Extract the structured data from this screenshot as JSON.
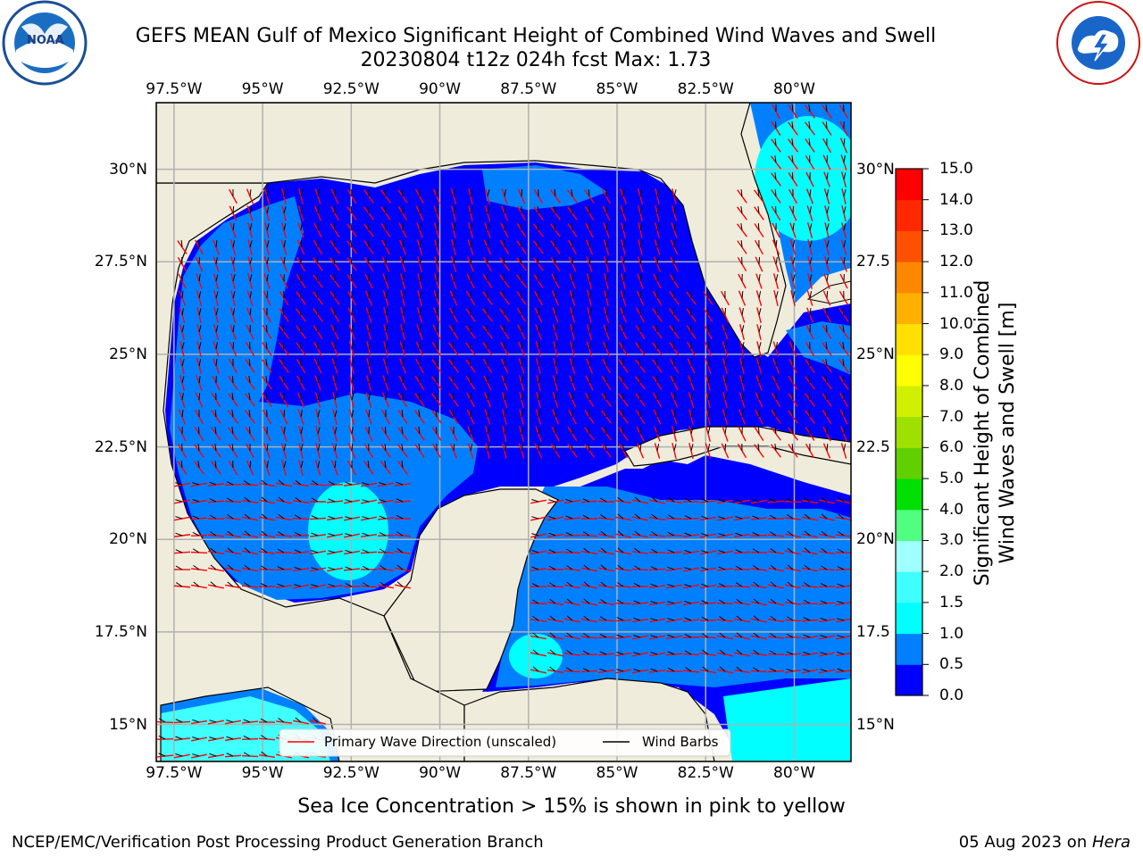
{
  "header": {
    "title_line1": "GEFS MEAN Gulf of Mexico Significant Height of Combined Wind Waves and Swell",
    "title_line2": "20230804 t12z 024h fcst   Max: 1.73"
  },
  "logos": {
    "noaa": {
      "text": "NOAA",
      "ring_text": "NATIONAL OCEANIC AND ATMOSPHERIC ADMINISTRATION · U.S. DEPARTMENT OF COMMERCE"
    },
    "nws": {
      "ring_text": "NATIONAL WEATHER SERVICE"
    }
  },
  "map": {
    "lon_ticks": [
      "97.5°W",
      "95°W",
      "92.5°W",
      "90°W",
      "87.5°W",
      "85°W",
      "82.5°W",
      "80°W"
    ],
    "lat_ticks_left": [
      "30°N",
      "27.5°N",
      "25°N",
      "22.5°N",
      "20°N",
      "17.5°N",
      "15°N"
    ],
    "lat_ticks_right": [
      "30°N",
      "27.5",
      "25°N",
      "22.5",
      "20°N",
      "17.5",
      "15°N"
    ],
    "lon_values": [
      -97.5,
      -95,
      -92.5,
      -90,
      -87.5,
      -85,
      -82.5,
      -80
    ],
    "lat_values": [
      30,
      27.5,
      25,
      22.5,
      20,
      17.5,
      15
    ],
    "extent": {
      "lon_min": -98,
      "lon_max": -78.4,
      "lat_min": 14,
      "lat_max": 31.8
    },
    "colors": {
      "land": "#efecdc",
      "grid": "#b0b0b0",
      "coast": "#000000",
      "wave_arrow": "#ff0000",
      "barb": "#000000"
    }
  },
  "legend": {
    "primary_wave": "Primary Wave Direction (unscaled)",
    "wind_barbs": "Wind Barbs"
  },
  "colorbar": {
    "label_line1": "Significant Height of Combined",
    "label_line2": "Wind Waves and Swell [m]",
    "ticks": [
      "0.0",
      "0.5",
      "1.0",
      "1.5",
      "2.0",
      "3.0",
      "4.0",
      "5.0",
      "6.0",
      "7.0",
      "8.0",
      "9.0",
      "10.0",
      "11.0",
      "12.0",
      "13.0",
      "14.0",
      "15.0"
    ],
    "colors": [
      "#0000ff",
      "#0080ff",
      "#00ffff",
      "#40ffff",
      "#a0ffff",
      "#50ff80",
      "#00e000",
      "#60d000",
      "#a0e000",
      "#d0f000",
      "#ffff00",
      "#ffe000",
      "#ffb000",
      "#ff8800",
      "#ff5000",
      "#ff2800",
      "#ff0000"
    ]
  },
  "note": "Sea Ice Concentration > 15% is shown in pink to yellow",
  "footer": {
    "left": "NCEP/EMC/Verification Post Processing Product Generation Branch",
    "right_date": "05 Aug 2023 on ",
    "right_host": "Hera"
  }
}
